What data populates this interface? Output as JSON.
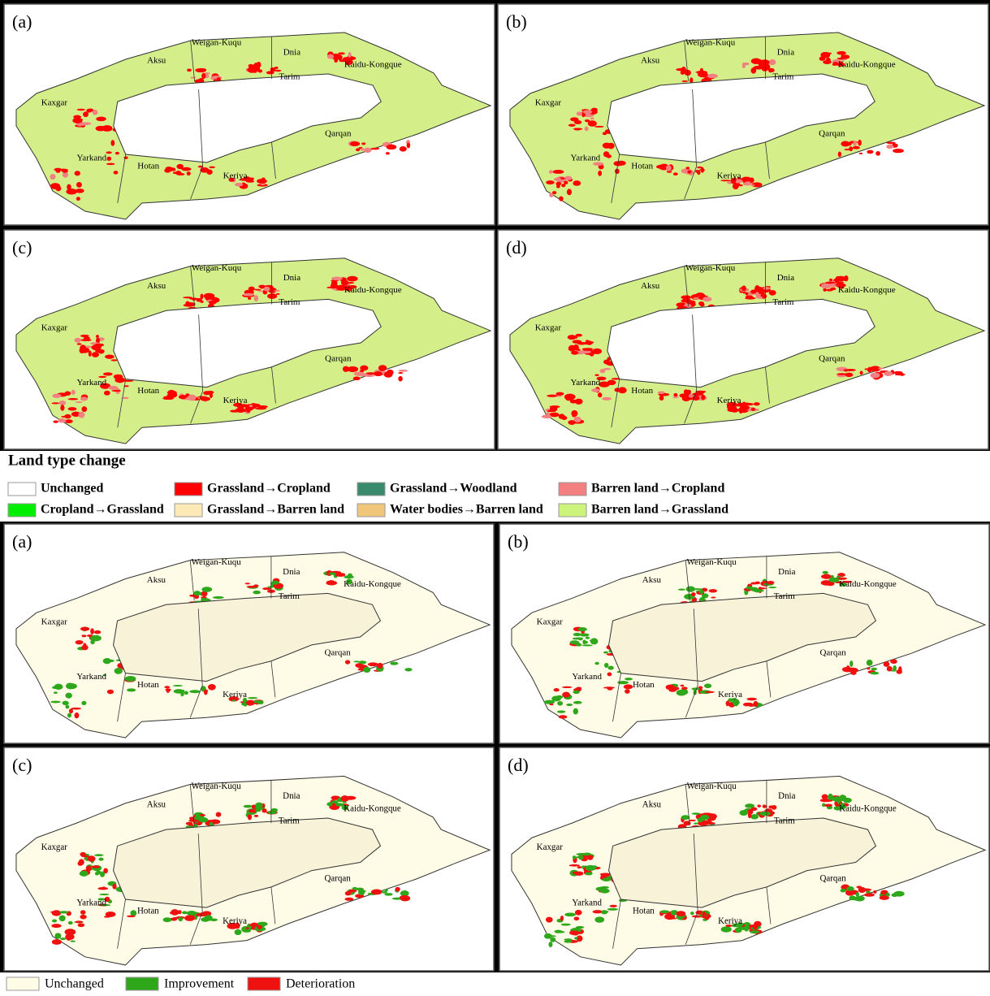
{
  "top_panels": [
    "(a)",
    "(b)",
    "(c)",
    "(d)"
  ],
  "bottom_panels": [
    "(a)",
    "(b)",
    "(c)",
    "(d)"
  ],
  "regions": [
    "Weigan-Kuqu",
    "Dnia",
    "Kaidu-Kongque",
    "Tarim",
    "Aksu",
    "Kaxgar",
    "Yarkand",
    "Hotan",
    "Keriya",
    "Qarqan"
  ],
  "land_type_legend": {
    "title": "Land type change",
    "items": [
      {
        "label": "Unchanged",
        "color": "#ffffff"
      },
      {
        "label": "Grassland→Cropland",
        "color": "#ff0000"
      },
      {
        "label": "Grassland→Woodland",
        "color": "#3a8a6e"
      },
      {
        "label": "Barren land→Cropland",
        "color": "#f28080"
      },
      {
        "label": "Cropland→Grassland",
        "color": "#00ee00"
      },
      {
        "label": "Grassland→Barren land",
        "color": "#fde9b5"
      },
      {
        "label": "Water bodies→Barren land",
        "color": "#f0c67a"
      },
      {
        "label": "Barren land→Grassland",
        "color": "#ccf47c"
      }
    ]
  },
  "condition_legend": {
    "items": [
      {
        "label": "Unchanged",
        "color": "#fefbe6"
      },
      {
        "label": "Improvement",
        "color": "#2ea81a"
      },
      {
        "label": "Deterioration",
        "color": "#ef1010"
      }
    ]
  }
}
